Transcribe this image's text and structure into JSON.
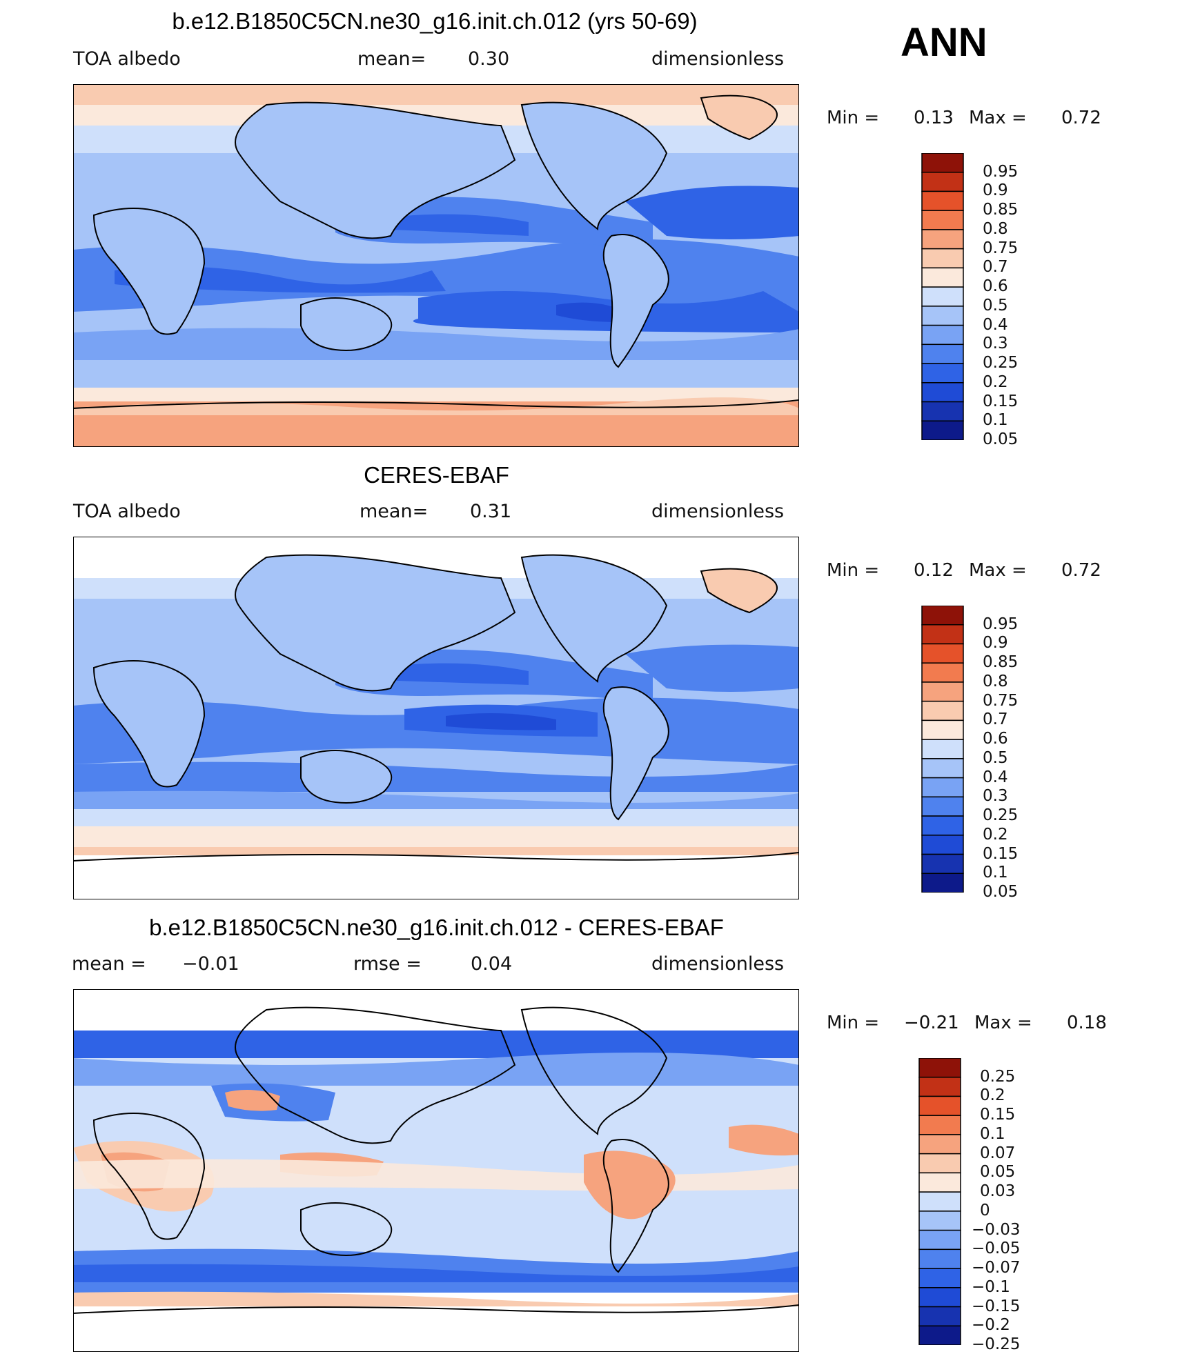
{
  "season": "ANN",
  "palette_levels": [
    "#0d1a8a",
    "#1733b0",
    "#1f4bd6",
    "#2f63e6",
    "#4f82ee",
    "#79a3f4",
    "#a6c4f8",
    "#cfe0fb",
    "#fbe9dc",
    "#f9cbb0",
    "#f6a37e",
    "#f27b4f",
    "#e5522a",
    "#c23116",
    "#8e1208"
  ],
  "panels": [
    {
      "title": "b.e12.B1850C5CN.ne30_g16.init.ch.012 (yrs 50-69)",
      "left_label": "TOA albedo",
      "center_label": "mean=",
      "center_value": "0.30",
      "right_label": "dimensionless",
      "min_label": "Min =",
      "min_value": "0.13",
      "max_label": "Max =",
      "max_value": "0.72",
      "colorbar_labels": [
        "0.95",
        "0.9",
        "0.85",
        "0.8",
        "0.75",
        "0.7",
        "0.6",
        "0.5",
        "0.4",
        "0.3",
        "0.25",
        "0.2",
        "0.15",
        "0.1",
        "0.05"
      ],
      "kind": "model"
    },
    {
      "title": "CERES-EBAF",
      "left_label": "TOA albedo",
      "center_label": "mean=",
      "center_value": "0.31",
      "right_label": "dimensionless",
      "min_label": "Min =",
      "min_value": "0.12",
      "max_label": "Max =",
      "max_value": "0.72",
      "colorbar_labels": [
        "0.95",
        "0.9",
        "0.85",
        "0.8",
        "0.75",
        "0.7",
        "0.6",
        "0.5",
        "0.4",
        "0.3",
        "0.25",
        "0.2",
        "0.15",
        "0.1",
        "0.05"
      ],
      "kind": "obs"
    },
    {
      "title": "b.e12.B1850C5CN.ne30_g16.init.ch.012 - CERES-EBAF",
      "left_label": "mean =",
      "left_value": "−0.01",
      "center_label": "rmse =",
      "center_value": "0.04",
      "right_label": "dimensionless",
      "min_label": "Min =",
      "min_value": "−0.21",
      "max_label": "Max =",
      "max_value": "0.18",
      "colorbar_labels": [
        "0.25",
        "0.2",
        "0.15",
        "0.1",
        "0.07",
        "0.05",
        "0.03",
        "0",
        "−0.03",
        "−0.05",
        "−0.07",
        "−0.1",
        "−0.15",
        "−0.2",
        "−0.25"
      ],
      "kind": "diff"
    }
  ]
}
